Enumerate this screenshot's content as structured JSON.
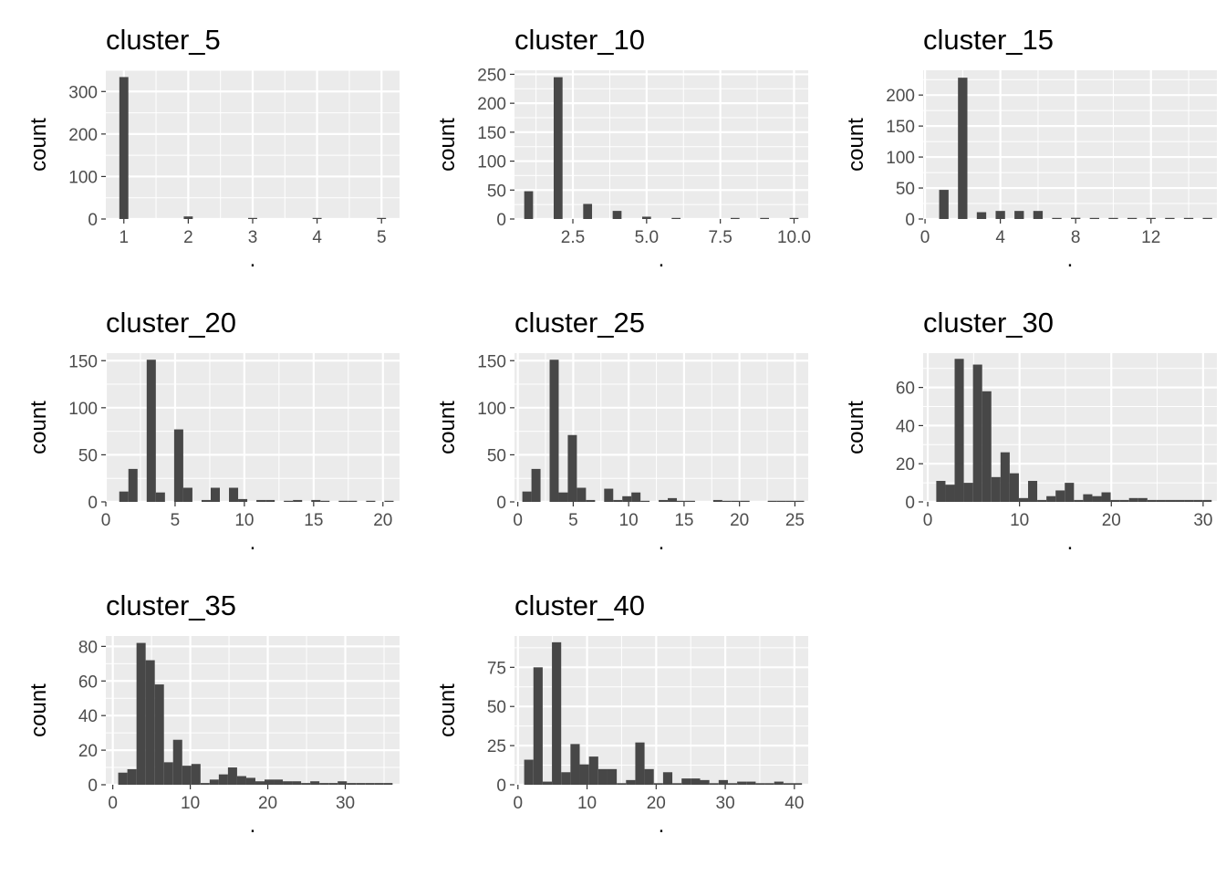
{
  "style": {
    "panel_bg": "#EBEBEB",
    "grid_major": "#FFFFFF",
    "bar_fill": "#474747",
    "tick_color": "#4D4D4D"
  },
  "chart_data": [
    {
      "type": "bar",
      "title": "cluster_5",
      "xlabel": ".",
      "ylabel": "count",
      "xlim": [
        0.72,
        5.28
      ],
      "ylim": [
        0,
        350
      ],
      "xticks": [
        1,
        2,
        3,
        4,
        5
      ],
      "xtick_labels": [
        "1",
        "2",
        "3",
        "4",
        "5"
      ],
      "yticks": [
        0,
        100,
        200,
        300
      ],
      "ytick_labels": [
        "0",
        "100",
        "200",
        "300"
      ],
      "bins": [
        {
          "x0": 0.93,
          "x1": 1.07,
          "count": 334
        },
        {
          "x0": 1.93,
          "x1": 2.07,
          "count": 6
        },
        {
          "x0": 2.93,
          "x1": 3.07,
          "count": 2
        },
        {
          "x0": 3.93,
          "x1": 4.07,
          "count": 2
        },
        {
          "x0": 4.93,
          "x1": 5.07,
          "count": 1
        }
      ]
    },
    {
      "type": "bar",
      "title": "cluster_10",
      "xlabel": ".",
      "ylabel": "count",
      "xlim": [
        0.52,
        10.48
      ],
      "ylim": [
        0,
        257
      ],
      "xticks": [
        2.5,
        5.0,
        7.5,
        10.0
      ],
      "xtick_labels": [
        "2.5",
        "5.0",
        "7.5",
        "10.0"
      ],
      "yticks": [
        0,
        50,
        100,
        150,
        200,
        250
      ],
      "ytick_labels": [
        "0",
        "50",
        "100",
        "150",
        "200",
        "250"
      ],
      "bins": [
        {
          "x0": 0.85,
          "x1": 1.15,
          "count": 48
        },
        {
          "x0": 1.85,
          "x1": 2.15,
          "count": 245
        },
        {
          "x0": 2.85,
          "x1": 3.15,
          "count": 26
        },
        {
          "x0": 3.85,
          "x1": 4.15,
          "count": 14
        },
        {
          "x0": 4.85,
          "x1": 5.15,
          "count": 4
        },
        {
          "x0": 5.85,
          "x1": 6.15,
          "count": 1
        },
        {
          "x0": 7.85,
          "x1": 8.15,
          "count": 1
        },
        {
          "x0": 8.85,
          "x1": 9.15,
          "count": 1
        },
        {
          "x0": 9.85,
          "x1": 10.15,
          "count": 1
        }
      ]
    },
    {
      "type": "bar",
      "title": "cluster_15",
      "xlabel": ".",
      "ylabel": "count",
      "xlim": [
        -0.1,
        15.5
      ],
      "ylim": [
        0,
        240
      ],
      "xticks": [
        0,
        4,
        8,
        12
      ],
      "xtick_labels": [
        "0",
        "4",
        "8",
        "12"
      ],
      "yticks": [
        0,
        50,
        100,
        150,
        200
      ],
      "ytick_labels": [
        "0",
        "50",
        "100",
        "150",
        "200"
      ],
      "bins": [
        {
          "x0": 0.75,
          "x1": 1.25,
          "count": 47
        },
        {
          "x0": 1.75,
          "x1": 2.25,
          "count": 228
        },
        {
          "x0": 2.75,
          "x1": 3.25,
          "count": 11
        },
        {
          "x0": 3.75,
          "x1": 4.25,
          "count": 13
        },
        {
          "x0": 4.75,
          "x1": 5.25,
          "count": 13
        },
        {
          "x0": 5.75,
          "x1": 6.25,
          "count": 13
        },
        {
          "x0": 6.75,
          "x1": 7.25,
          "count": 1
        },
        {
          "x0": 7.75,
          "x1": 8.25,
          "count": 2
        },
        {
          "x0": 8.75,
          "x1": 9.25,
          "count": 1
        },
        {
          "x0": 9.75,
          "x1": 10.25,
          "count": 1
        },
        {
          "x0": 10.75,
          "x1": 11.25,
          "count": 1
        },
        {
          "x0": 11.75,
          "x1": 12.25,
          "count": 1
        },
        {
          "x0": 12.75,
          "x1": 13.25,
          "count": 1
        },
        {
          "x0": 13.75,
          "x1": 14.25,
          "count": 1
        },
        {
          "x0": 14.75,
          "x1": 15.25,
          "count": 1
        }
      ]
    },
    {
      "type": "bar",
      "title": "cluster_20",
      "xlabel": ".",
      "ylabel": "count",
      "xlim": [
        0.0,
        21.2
      ],
      "ylim": [
        0,
        158
      ],
      "xticks": [
        0,
        5,
        10,
        15,
        20
      ],
      "xtick_labels": [
        "0",
        "5",
        "10",
        "15",
        "20"
      ],
      "yticks": [
        0,
        50,
        100,
        150
      ],
      "ytick_labels": [
        "0",
        "50",
        "100",
        "150"
      ],
      "bins": [
        {
          "x0": 0.97,
          "x1": 1.63,
          "count": 11
        },
        {
          "x0": 1.63,
          "x1": 2.29,
          "count": 35
        },
        {
          "x0": 2.95,
          "x1": 3.61,
          "count": 151
        },
        {
          "x0": 3.61,
          "x1": 4.27,
          "count": 10
        },
        {
          "x0": 4.93,
          "x1": 5.59,
          "count": 77
        },
        {
          "x0": 5.59,
          "x1": 6.25,
          "count": 15
        },
        {
          "x0": 6.91,
          "x1": 7.57,
          "count": 2
        },
        {
          "x0": 7.57,
          "x1": 8.23,
          "count": 15
        },
        {
          "x0": 8.89,
          "x1": 9.55,
          "count": 15
        },
        {
          "x0": 9.55,
          "x1": 10.21,
          "count": 3
        },
        {
          "x0": 10.87,
          "x1": 11.53,
          "count": 2
        },
        {
          "x0": 11.53,
          "x1": 12.19,
          "count": 2
        },
        {
          "x0": 12.85,
          "x1": 13.51,
          "count": 1
        },
        {
          "x0": 13.51,
          "x1": 14.17,
          "count": 2
        },
        {
          "x0": 14.83,
          "x1": 15.49,
          "count": 2
        },
        {
          "x0": 15.49,
          "x1": 16.15,
          "count": 1
        },
        {
          "x0": 16.81,
          "x1": 17.47,
          "count": 1
        },
        {
          "x0": 17.47,
          "x1": 18.13,
          "count": 1
        },
        {
          "x0": 18.79,
          "x1": 19.45,
          "count": 1
        },
        {
          "x0": 20.11,
          "x1": 20.77,
          "count": 1
        }
      ]
    },
    {
      "type": "bar",
      "title": "cluster_25",
      "xlabel": ".",
      "ylabel": "count",
      "xlim": [
        -0.3,
        26.2
      ],
      "ylim": [
        0,
        158
      ],
      "xticks": [
        0,
        5,
        10,
        15,
        20,
        25
      ],
      "xtick_labels": [
        "0",
        "5",
        "10",
        "15",
        "20",
        "25"
      ],
      "yticks": [
        0,
        50,
        100,
        150
      ],
      "ytick_labels": [
        "0",
        "50",
        "100",
        "150"
      ],
      "bins": [
        {
          "x0": 0.41,
          "x1": 1.23,
          "count": 11
        },
        {
          "x0": 1.23,
          "x1": 2.05,
          "count": 35
        },
        {
          "x0": 2.87,
          "x1": 3.69,
          "count": 151
        },
        {
          "x0": 3.69,
          "x1": 4.51,
          "count": 10
        },
        {
          "x0": 4.51,
          "x1": 5.33,
          "count": 71
        },
        {
          "x0": 5.33,
          "x1": 6.15,
          "count": 15
        },
        {
          "x0": 6.15,
          "x1": 6.97,
          "count": 2
        },
        {
          "x0": 7.79,
          "x1": 8.61,
          "count": 14
        },
        {
          "x0": 8.61,
          "x1": 9.43,
          "count": 2
        },
        {
          "x0": 9.43,
          "x1": 10.25,
          "count": 6
        },
        {
          "x0": 10.25,
          "x1": 11.07,
          "count": 10
        },
        {
          "x0": 11.07,
          "x1": 11.89,
          "count": 1
        },
        {
          "x0": 12.71,
          "x1": 13.53,
          "count": 2
        },
        {
          "x0": 13.53,
          "x1": 14.35,
          "count": 4
        },
        {
          "x0": 14.35,
          "x1": 15.17,
          "count": 1
        },
        {
          "x0": 15.17,
          "x1": 15.99,
          "count": 1
        },
        {
          "x0": 17.63,
          "x1": 18.45,
          "count": 2
        },
        {
          "x0": 18.45,
          "x1": 19.27,
          "count": 1
        },
        {
          "x0": 19.27,
          "x1": 20.09,
          "count": 1
        },
        {
          "x0": 20.09,
          "x1": 20.91,
          "count": 1
        },
        {
          "x0": 22.55,
          "x1": 23.37,
          "count": 1
        },
        {
          "x0": 23.37,
          "x1": 24.19,
          "count": 1
        },
        {
          "x0": 24.19,
          "x1": 25.01,
          "count": 1
        },
        {
          "x0": 25.01,
          "x1": 25.83,
          "count": 1
        }
      ]
    },
    {
      "type": "bar",
      "title": "cluster_30",
      "xlabel": ".",
      "ylabel": "count",
      "xlim": [
        -0.5,
        31.5
      ],
      "ylim": [
        0,
        78
      ],
      "xticks": [
        0,
        10,
        20,
        30
      ],
      "xtick_labels": [
        "0",
        "10",
        "20",
        "30"
      ],
      "yticks": [
        0,
        20,
        40,
        60
      ],
      "ytick_labels": [
        "0",
        "20",
        "40",
        "60"
      ],
      "bins": [
        {
          "x0": 0.93,
          "x1": 1.93,
          "count": 11
        },
        {
          "x0": 1.93,
          "x1": 2.93,
          "count": 9
        },
        {
          "x0": 2.93,
          "x1": 3.93,
          "count": 75
        },
        {
          "x0": 3.93,
          "x1": 4.93,
          "count": 10
        },
        {
          "x0": 4.93,
          "x1": 5.93,
          "count": 72
        },
        {
          "x0": 5.93,
          "x1": 6.93,
          "count": 58
        },
        {
          "x0": 6.93,
          "x1": 7.93,
          "count": 13
        },
        {
          "x0": 7.93,
          "x1": 8.93,
          "count": 26
        },
        {
          "x0": 8.93,
          "x1": 9.93,
          "count": 15
        },
        {
          "x0": 9.93,
          "x1": 10.93,
          "count": 2
        },
        {
          "x0": 10.93,
          "x1": 11.93,
          "count": 11
        },
        {
          "x0": 11.93,
          "x1": 12.93,
          "count": 1
        },
        {
          "x0": 12.93,
          "x1": 13.93,
          "count": 3
        },
        {
          "x0": 13.93,
          "x1": 14.93,
          "count": 6
        },
        {
          "x0": 14.93,
          "x1": 15.93,
          "count": 10
        },
        {
          "x0": 15.93,
          "x1": 16.93,
          "count": 1
        },
        {
          "x0": 16.93,
          "x1": 17.93,
          "count": 4
        },
        {
          "x0": 17.93,
          "x1": 18.93,
          "count": 3
        },
        {
          "x0": 18.93,
          "x1": 19.93,
          "count": 5
        },
        {
          "x0": 19.93,
          "x1": 20.93,
          "count": 1
        },
        {
          "x0": 20.93,
          "x1": 21.93,
          "count": 1
        },
        {
          "x0": 21.93,
          "x1": 22.93,
          "count": 2
        },
        {
          "x0": 22.93,
          "x1": 23.93,
          "count": 2
        },
        {
          "x0": 23.93,
          "x1": 24.93,
          "count": 1
        },
        {
          "x0": 24.93,
          "x1": 25.93,
          "count": 1
        },
        {
          "x0": 25.93,
          "x1": 26.93,
          "count": 1
        },
        {
          "x0": 26.93,
          "x1": 27.93,
          "count": 1
        },
        {
          "x0": 27.93,
          "x1": 28.93,
          "count": 1
        },
        {
          "x0": 28.93,
          "x1": 29.93,
          "count": 1
        },
        {
          "x0": 29.93,
          "x1": 30.93,
          "count": 1
        }
      ]
    },
    {
      "type": "bar",
      "title": "cluster_35",
      "xlabel": ".",
      "ylabel": "count",
      "xlim": [
        -0.9,
        37.0
      ],
      "ylim": [
        0,
        86
      ],
      "xticks": [
        0,
        10,
        20,
        30
      ],
      "xtick_labels": [
        "0",
        "10",
        "20",
        "30"
      ],
      "yticks": [
        0,
        20,
        40,
        60,
        80
      ],
      "ytick_labels": [
        "0",
        "20",
        "40",
        "60",
        "80"
      ],
      "bins": [
        {
          "x0": 0.7,
          "x1": 1.88,
          "count": 7
        },
        {
          "x0": 1.88,
          "x1": 3.06,
          "count": 9
        },
        {
          "x0": 3.06,
          "x1": 4.24,
          "count": 82
        },
        {
          "x0": 4.24,
          "x1": 5.42,
          "count": 72
        },
        {
          "x0": 5.42,
          "x1": 6.6,
          "count": 58
        },
        {
          "x0": 6.6,
          "x1": 7.78,
          "count": 13
        },
        {
          "x0": 7.78,
          "x1": 8.96,
          "count": 26
        },
        {
          "x0": 8.96,
          "x1": 10.14,
          "count": 11
        },
        {
          "x0": 10.14,
          "x1": 11.32,
          "count": 12
        },
        {
          "x0": 11.32,
          "x1": 12.5,
          "count": 1
        },
        {
          "x0": 12.5,
          "x1": 13.68,
          "count": 3
        },
        {
          "x0": 13.68,
          "x1": 14.86,
          "count": 6
        },
        {
          "x0": 14.86,
          "x1": 16.04,
          "count": 10
        },
        {
          "x0": 16.04,
          "x1": 17.22,
          "count": 5
        },
        {
          "x0": 17.22,
          "x1": 18.4,
          "count": 4
        },
        {
          "x0": 18.4,
          "x1": 19.58,
          "count": 2
        },
        {
          "x0": 19.58,
          "x1": 20.76,
          "count": 3
        },
        {
          "x0": 20.76,
          "x1": 21.94,
          "count": 3
        },
        {
          "x0": 21.94,
          "x1": 23.12,
          "count": 2
        },
        {
          "x0": 23.12,
          "x1": 24.3,
          "count": 2
        },
        {
          "x0": 24.3,
          "x1": 25.48,
          "count": 1
        },
        {
          "x0": 25.48,
          "x1": 26.66,
          "count": 2
        },
        {
          "x0": 26.66,
          "x1": 27.84,
          "count": 1
        },
        {
          "x0": 27.84,
          "x1": 29.02,
          "count": 1
        },
        {
          "x0": 29.02,
          "x1": 30.2,
          "count": 2
        },
        {
          "x0": 30.2,
          "x1": 31.38,
          "count": 1
        },
        {
          "x0": 31.38,
          "x1": 32.56,
          "count": 1
        },
        {
          "x0": 32.56,
          "x1": 33.74,
          "count": 1
        },
        {
          "x0": 33.74,
          "x1": 34.92,
          "count": 1
        },
        {
          "x0": 34.92,
          "x1": 36.1,
          "count": 1
        }
      ]
    },
    {
      "type": "bar",
      "title": "cluster_40",
      "xlabel": ".",
      "ylabel": "count",
      "xlim": [
        -0.5,
        42.0
      ],
      "ylim": [
        0,
        95
      ],
      "xticks": [
        0,
        10,
        20,
        30,
        40
      ],
      "xtick_labels": [
        "0",
        "10",
        "20",
        "30",
        "40"
      ],
      "yticks": [
        0,
        25,
        50,
        75
      ],
      "ytick_labels": [
        "0",
        "25",
        "50",
        "75"
      ],
      "bins": [
        {
          "x0": 0.9,
          "x1": 2.24,
          "count": 16
        },
        {
          "x0": 2.24,
          "x1": 3.58,
          "count": 75
        },
        {
          "x0": 3.58,
          "x1": 4.92,
          "count": 2
        },
        {
          "x0": 4.92,
          "x1": 6.26,
          "count": 91
        },
        {
          "x0": 6.26,
          "x1": 7.6,
          "count": 8
        },
        {
          "x0": 7.6,
          "x1": 8.94,
          "count": 26
        },
        {
          "x0": 8.94,
          "x1": 10.28,
          "count": 13
        },
        {
          "x0": 10.28,
          "x1": 11.62,
          "count": 18
        },
        {
          "x0": 11.62,
          "x1": 12.96,
          "count": 10
        },
        {
          "x0": 12.96,
          "x1": 14.3,
          "count": 10
        },
        {
          "x0": 14.3,
          "x1": 15.64,
          "count": 1
        },
        {
          "x0": 15.64,
          "x1": 16.98,
          "count": 3
        },
        {
          "x0": 16.98,
          "x1": 18.32,
          "count": 27
        },
        {
          "x0": 18.32,
          "x1": 19.66,
          "count": 10
        },
        {
          "x0": 19.66,
          "x1": 21.0,
          "count": 1
        },
        {
          "x0": 21.0,
          "x1": 22.34,
          "count": 8
        },
        {
          "x0": 22.34,
          "x1": 23.68,
          "count": 1
        },
        {
          "x0": 23.68,
          "x1": 25.02,
          "count": 4
        },
        {
          "x0": 25.02,
          "x1": 26.36,
          "count": 4
        },
        {
          "x0": 26.36,
          "x1": 27.7,
          "count": 3
        },
        {
          "x0": 27.7,
          "x1": 29.04,
          "count": 1
        },
        {
          "x0": 29.04,
          "x1": 30.38,
          "count": 3
        },
        {
          "x0": 30.38,
          "x1": 31.72,
          "count": 1
        },
        {
          "x0": 31.72,
          "x1": 33.06,
          "count": 2
        },
        {
          "x0": 33.06,
          "x1": 34.4,
          "count": 2
        },
        {
          "x0": 34.4,
          "x1": 35.74,
          "count": 1
        },
        {
          "x0": 35.74,
          "x1": 37.08,
          "count": 1
        },
        {
          "x0": 37.08,
          "x1": 38.42,
          "count": 2
        },
        {
          "x0": 38.42,
          "x1": 39.76,
          "count": 1
        },
        {
          "x0": 39.76,
          "x1": 41.1,
          "count": 1
        }
      ]
    }
  ]
}
